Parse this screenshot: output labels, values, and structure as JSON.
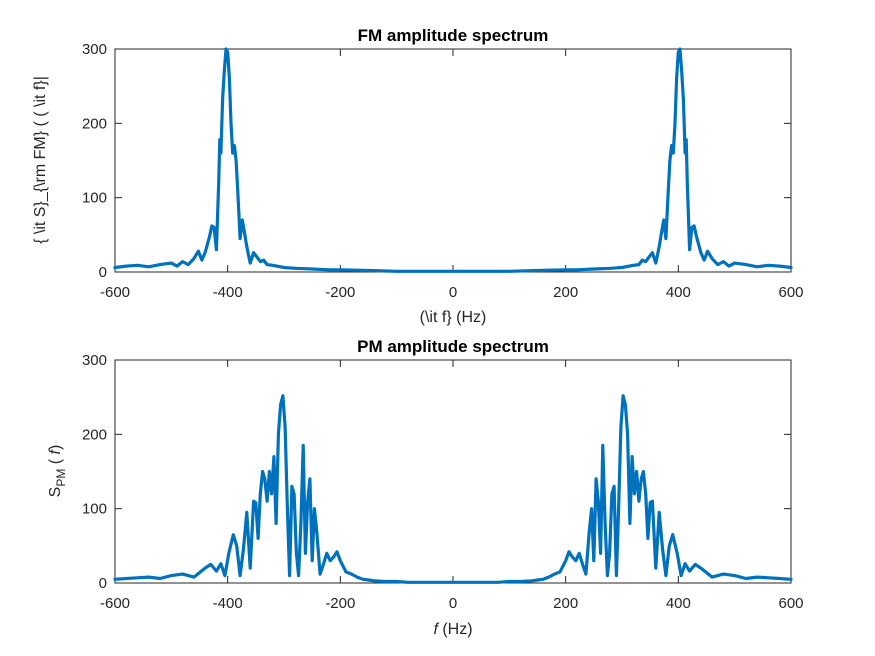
{
  "chart_data": [
    {
      "type": "line",
      "title": "FM amplitude spectrum",
      "xlabel": "(\\it f} (Hz)",
      "ylabel": "{ \\it S}_{\\rm FM} ( ( \\it f}|",
      "xlim": [
        -600,
        600
      ],
      "ylim": [
        0,
        300
      ],
      "xticks": [
        -600,
        -400,
        -200,
        0,
        200,
        400,
        600
      ],
      "yticks": [
        0,
        100,
        200,
        300
      ],
      "grid": false,
      "color": "#0072BD",
      "series": [
        {
          "x": [
            -600,
            -580,
            -560,
            -540,
            -520,
            -500,
            -490,
            -480,
            -470,
            -460,
            -452,
            -446,
            -440,
            -432,
            -428,
            -424,
            -420,
            -416,
            -414,
            -412,
            -409,
            -406,
            -403,
            -400,
            -397,
            -394,
            -391,
            -388,
            -385,
            -382,
            -378,
            -374,
            -370,
            -366,
            -360,
            -354,
            -348,
            -342,
            -336,
            -330,
            -320,
            -300,
            -280,
            -250,
            -220,
            -200,
            -150,
            -100,
            -50,
            0,
            50,
            100,
            150,
            200,
            220,
            250,
            280,
            300,
            320,
            330,
            336,
            342,
            348,
            354,
            360,
            366,
            370,
            374,
            378,
            382,
            385,
            388,
            391,
            394,
            397,
            400,
            403,
            406,
            409,
            412,
            414,
            416,
            420,
            424,
            428,
            432,
            440,
            446,
            452,
            460,
            470,
            480,
            490,
            500,
            520,
            540,
            560,
            580,
            600
          ],
          "y": [
            6,
            8,
            9,
            7,
            10,
            12,
            8,
            14,
            10,
            18,
            28,
            16,
            26,
            48,
            62,
            60,
            30,
            120,
            178,
            160,
            232,
            270,
            300,
            296,
            260,
            200,
            160,
            170,
            150,
            108,
            45,
            70,
            52,
            34,
            12,
            26,
            20,
            14,
            16,
            10,
            9,
            6,
            5,
            4,
            3,
            3,
            2,
            1,
            1,
            1,
            1,
            1,
            2,
            3,
            3,
            4,
            5,
            6,
            9,
            10,
            16,
            14,
            20,
            26,
            12,
            34,
            52,
            70,
            45,
            108,
            150,
            170,
            160,
            200,
            260,
            296,
            300,
            270,
            232,
            160,
            178,
            120,
            30,
            60,
            62,
            48,
            26,
            16,
            28,
            18,
            10,
            14,
            8,
            12,
            10,
            7,
            9,
            8,
            6
          ]
        }
      ]
    },
    {
      "type": "line",
      "title": "PM amplitude spectrum",
      "xlabel": "f (Hz)",
      "ylabel": "S_PM ( f)",
      "xlim": [
        -600,
        600
      ],
      "ylim": [
        0,
        300
      ],
      "xticks": [
        -600,
        -400,
        -200,
        0,
        200,
        400,
        600
      ],
      "yticks": [
        0,
        100,
        200,
        300
      ],
      "grid": false,
      "color": "#0072BD",
      "series": [
        {
          "x": [
            -600,
            -580,
            -560,
            -540,
            -520,
            -500,
            -480,
            -460,
            -440,
            -430,
            -420,
            -412,
            -405,
            -398,
            -390,
            -384,
            -378,
            -372,
            -366,
            -360,
            -354,
            -350,
            -346,
            -342,
            -338,
            -334,
            -330,
            -326,
            -322,
            -318,
            -314,
            -310,
            -306,
            -302,
            -298,
            -294,
            -290,
            -286,
            -282,
            -278,
            -274,
            -270,
            -266,
            -262,
            -258,
            -254,
            -250,
            -246,
            -242,
            -236,
            -230,
            -224,
            -218,
            -212,
            -206,
            -200,
            -190,
            -180,
            -170,
            -160,
            -150,
            -140,
            -120,
            -100,
            -80,
            -60,
            -40,
            -20,
            0,
            20,
            40,
            60,
            80,
            100,
            120,
            140,
            150,
            160,
            170,
            180,
            190,
            200,
            206,
            212,
            218,
            224,
            230,
            236,
            242,
            246,
            250,
            254,
            258,
            262,
            266,
            270,
            274,
            278,
            282,
            286,
            290,
            294,
            298,
            302,
            306,
            310,
            314,
            318,
            322,
            326,
            330,
            334,
            338,
            342,
            346,
            350,
            354,
            360,
            366,
            372,
            378,
            384,
            390,
            398,
            405,
            412,
            420,
            430,
            440,
            460,
            480,
            500,
            520,
            540,
            560,
            580,
            600
          ],
          "y": [
            5,
            6,
            7,
            8,
            6,
            10,
            12,
            8,
            20,
            25,
            16,
            26,
            10,
            40,
            65,
            50,
            10,
            45,
            95,
            20,
            110,
            108,
            60,
            120,
            150,
            140,
            110,
            150,
            120,
            170,
            80,
            200,
            240,
            252,
            210,
            100,
            10,
            130,
            120,
            40,
            10,
            80,
            185,
            40,
            110,
            140,
            30,
            100,
            70,
            12,
            25,
            40,
            30,
            35,
            42,
            30,
            15,
            12,
            8,
            5,
            4,
            3,
            2,
            2,
            1,
            1,
            1,
            1,
            1,
            1,
            1,
            1,
            1,
            2,
            2,
            3,
            4,
            5,
            8,
            12,
            15,
            30,
            42,
            35,
            30,
            40,
            25,
            12,
            70,
            100,
            30,
            140,
            110,
            40,
            185,
            80,
            10,
            40,
            120,
            130,
            10,
            100,
            210,
            252,
            240,
            200,
            80,
            170,
            120,
            150,
            110,
            140,
            150,
            120,
            60,
            108,
            110,
            20,
            95,
            45,
            10,
            50,
            65,
            40,
            10,
            26,
            16,
            25,
            20,
            8,
            12,
            10,
            6,
            8,
            7,
            6,
            5
          ]
        }
      ]
    }
  ]
}
